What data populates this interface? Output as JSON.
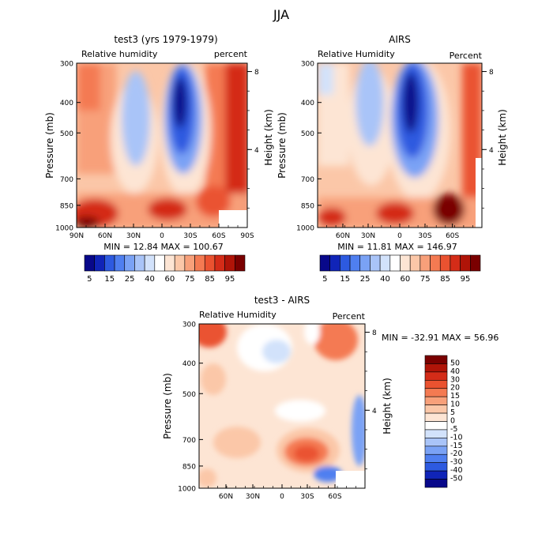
{
  "title": "JJA",
  "panels": [
    {
      "title": "test3 (yrs 1979-1979)",
      "left_label": "Relative humidity",
      "right_label": "percent",
      "x_ticks": [
        "90N",
        "60N",
        "30N",
        "0",
        "30S",
        "60S",
        "90S"
      ],
      "stats": "MIN =   12.84   MAX = 100.67"
    },
    {
      "title": "AIRS",
      "left_label": "Relative Humidity",
      "right_label": "Percent",
      "x_ticks": [
        "60N",
        "30N",
        "0",
        "30S",
        "60S"
      ],
      "stats": "MIN =   11.81   MAX = 146.97"
    },
    {
      "title": "test3 - AIRS",
      "left_label": "Relative Humidity",
      "right_label": "Percent",
      "x_ticks": [
        "60N",
        "30N",
        "0",
        "30S",
        "60S"
      ],
      "stats": "MIN = -32.91   MAX =   56.96"
    }
  ],
  "y_axis_label": "Pressure (mb)",
  "y_ticks": [
    "300",
    "400",
    "500",
    "700",
    "850",
    "1000"
  ],
  "right_axis_label": "Height (km)",
  "right_ticks": [
    "8",
    "4"
  ],
  "colorbar_abs": {
    "labels": [
      "5",
      "15",
      "25",
      "40",
      "60",
      "75",
      "85",
      "95"
    ],
    "colors": [
      "#08088a",
      "#1024b8",
      "#2d5ae0",
      "#4f7ff0",
      "#7aa2f5",
      "#a9c4f8",
      "#d2e2fb",
      "#ffffff",
      "#fde5d4",
      "#fbc7a8",
      "#f8a07a",
      "#f47a52",
      "#ea5230",
      "#d42c18",
      "#b01408",
      "#7a0000"
    ]
  },
  "colorbar_diff": {
    "labels": [
      "50",
      "40",
      "30",
      "20",
      "15",
      "10",
      "5",
      "0",
      "-5",
      "-10",
      "-15",
      "-20",
      "-30",
      "-40",
      "-50"
    ],
    "colors": [
      "#7a0000",
      "#b01408",
      "#d42c18",
      "#ea5230",
      "#f47a52",
      "#f8a07a",
      "#fbc7a8",
      "#fde5d4",
      "#ffffff",
      "#d2e2fb",
      "#a9c4f8",
      "#7aa2f5",
      "#4f7ff0",
      "#2d5ae0",
      "#1024b8",
      "#08088a"
    ]
  },
  "chart_data": [
    {
      "type": "heatmap",
      "title": "test3 (yrs 1979-1979)",
      "subtitle": "Relative humidity",
      "units": "percent",
      "xlabel": "",
      "ylabel": "Pressure (mb)",
      "y2label": "Height (km)",
      "x_tick_labels": [
        "90N",
        "60N",
        "30N",
        "0",
        "30S",
        "60S",
        "90S"
      ],
      "y_tick_labels": [
        300,
        400,
        500,
        700,
        850,
        1000
      ],
      "contour_levels": [
        5,
        15,
        25,
        40,
        60,
        75,
        85,
        95
      ],
      "min": 12.84,
      "max": 100.67
    },
    {
      "type": "heatmap",
      "title": "AIRS",
      "subtitle": "Relative Humidity",
      "units": "Percent",
      "xlabel": "",
      "ylabel": "Pressure (mb)",
      "y2label": "Height (km)",
      "x_tick_labels": [
        "60N",
        "30N",
        "0",
        "30S",
        "60S"
      ],
      "y_tick_labels": [
        300,
        400,
        500,
        700,
        850,
        1000
      ],
      "contour_levels": [
        5,
        15,
        25,
        40,
        60,
        75,
        85,
        95
      ],
      "min": 11.81,
      "max": 146.97
    },
    {
      "type": "heatmap",
      "title": "test3 - AIRS",
      "subtitle": "Relative Humidity",
      "units": "Percent",
      "xlabel": "",
      "ylabel": "Pressure (mb)",
      "y2label": "Height (km)",
      "x_tick_labels": [
        "60N",
        "30N",
        "0",
        "30S",
        "60S"
      ],
      "y_tick_labels": [
        300,
        400,
        500,
        700,
        850,
        1000
      ],
      "contour_levels": [
        -50,
        -40,
        -30,
        -20,
        -15,
        -10,
        -5,
        0,
        5,
        10,
        15,
        20,
        30,
        40,
        50
      ],
      "min": -32.91,
      "max": 56.96
    }
  ]
}
